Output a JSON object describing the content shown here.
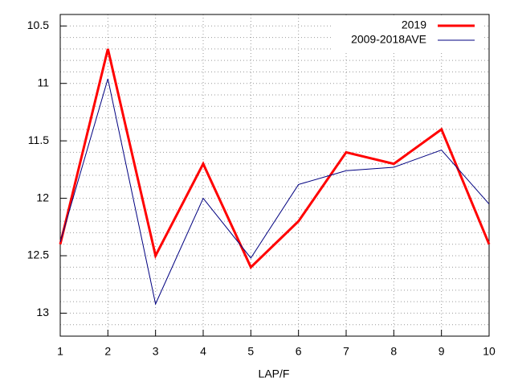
{
  "chart_data": {
    "type": "line",
    "xlabel": "LAP/F",
    "x": [
      1,
      2,
      3,
      4,
      5,
      6,
      7,
      8,
      9,
      10
    ],
    "series": [
      {
        "name": "2019",
        "color": "#ff0000",
        "width": 3,
        "values": [
          12.4,
          10.7,
          12.5,
          11.7,
          12.6,
          12.2,
          11.6,
          11.7,
          11.4,
          12.4
        ]
      },
      {
        "name": "2009-2018AVE",
        "color": "#000080",
        "width": 1,
        "values": [
          12.38,
          10.96,
          12.92,
          12.0,
          12.52,
          11.88,
          11.76,
          11.73,
          11.58,
          12.05
        ]
      }
    ],
    "xlim": [
      1,
      10
    ],
    "xticks": [
      1,
      2,
      3,
      4,
      5,
      6,
      7,
      8,
      9,
      10
    ],
    "ylim": [
      13.2,
      10.4
    ],
    "yticks": [
      10.5,
      11,
      11.5,
      12,
      12.5,
      13
    ],
    "yminorticks": [
      10.6,
      10.7,
      10.8,
      10.9,
      11.1,
      11.2,
      11.3,
      11.4,
      11.6,
      11.7,
      11.8,
      11.9,
      12.1,
      12.2,
      12.3,
      12.4,
      12.6,
      12.7,
      12.8,
      12.9,
      13.1
    ],
    "grid": true,
    "legend": "top-right"
  }
}
